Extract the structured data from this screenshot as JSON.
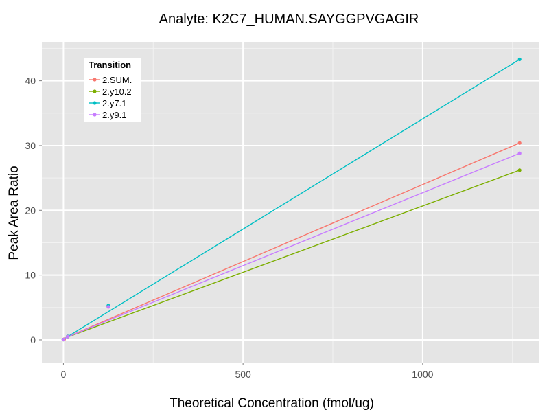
{
  "chart_data": {
    "type": "line",
    "title": "Analyte: K2C7_HUMAN.SAYGGPVGAGIR",
    "xlabel": "Theoretical Concentration (fmol/ug)",
    "ylabel": "Peak Area Ratio",
    "xlim": [
      -60,
      1325
    ],
    "ylim": [
      -3.5,
      46
    ],
    "xticks": [
      0,
      500,
      1000
    ],
    "yticks": [
      0,
      10,
      20,
      30,
      40
    ],
    "grid": true,
    "legend": {
      "title": "Transition",
      "placement": "top-left"
    },
    "series": [
      {
        "name": "2.SUM.",
        "color": "#F8766D",
        "fit": [
          [
            0,
            0.2
          ],
          [
            1270,
            30.4
          ]
        ],
        "points": [
          {
            "x": 0,
            "y": 0.05
          },
          {
            "x": 2,
            "y": 0.1
          },
          {
            "x": 12,
            "y": 0.55
          },
          {
            "x": 125,
            "y": 5.2
          },
          {
            "x": 1270,
            "y": 30.4
          }
        ]
      },
      {
        "name": "2.y10.2",
        "color": "#7CAE00",
        "fit": [
          [
            0,
            0.2
          ],
          [
            1270,
            26.2
          ]
        ],
        "points": [
          {
            "x": 0,
            "y": 0.05
          },
          {
            "x": 12,
            "y": 0.5
          },
          {
            "x": 125,
            "y": 5.15
          },
          {
            "x": 1270,
            "y": 26.2
          }
        ]
      },
      {
        "name": "2.y7.1",
        "color": "#00BFC4",
        "fit": [
          [
            0,
            0.1
          ],
          [
            1270,
            43.3
          ]
        ],
        "points": [
          {
            "x": 0,
            "y": 0.05
          },
          {
            "x": 12,
            "y": 0.55
          },
          {
            "x": 125,
            "y": 5.3
          },
          {
            "x": 1270,
            "y": 43.3
          }
        ]
      },
      {
        "name": "2.y9.1",
        "color": "#C77CFF",
        "fit": [
          [
            0,
            0.2
          ],
          [
            1270,
            28.8
          ]
        ],
        "points": [
          {
            "x": 0,
            "y": 0.05
          },
          {
            "x": 12,
            "y": 0.5
          },
          {
            "x": 125,
            "y": 5.1
          },
          {
            "x": 1270,
            "y": 28.8
          }
        ]
      }
    ]
  }
}
